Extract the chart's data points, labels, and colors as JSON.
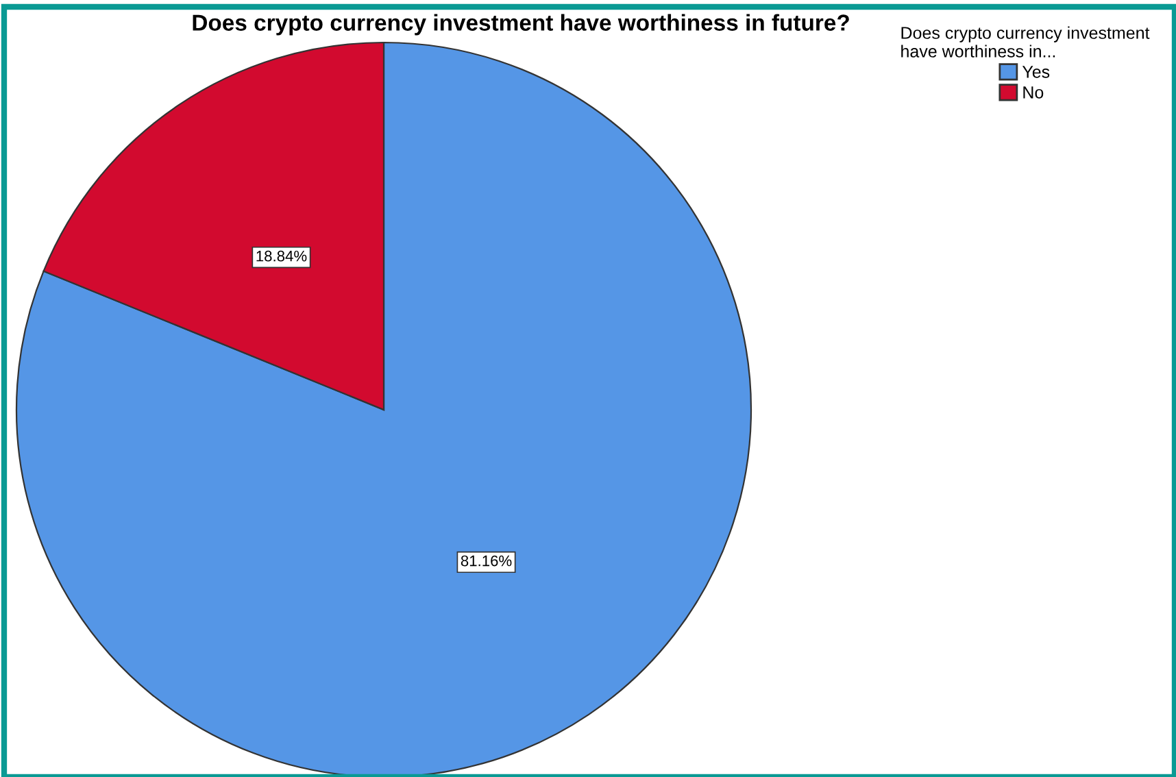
{
  "chart_data": {
    "type": "pie",
    "title": "Does crypto currency investment have worthiness in future?",
    "legend_title": "Does crypto currency investment\nhave worthiness in...",
    "categories": [
      "Yes",
      "No"
    ],
    "values": [
      81.16,
      18.84
    ],
    "colors": [
      "#5596e6",
      "#d20a2f"
    ],
    "value_labels": [
      "81.16%",
      "18.84%"
    ],
    "legend": "top right"
  }
}
